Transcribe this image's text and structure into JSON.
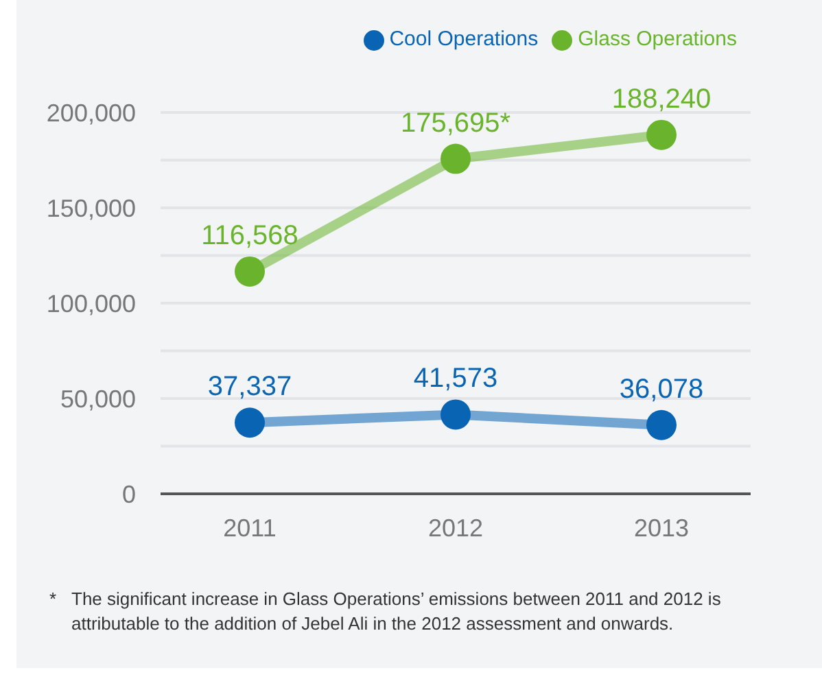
{
  "chart_data": {
    "type": "line",
    "categories": [
      "2011",
      "2012",
      "2013"
    ],
    "series": [
      {
        "name": "Cool Operations",
        "color": "#0a64b4",
        "values": [
          37337,
          41573,
          36078
        ],
        "value_labels": [
          "37,337",
          "41,573",
          "36,078"
        ]
      },
      {
        "name": "Glass Operations",
        "color": "#6ab42d",
        "values": [
          116568,
          175695,
          188240
        ],
        "value_labels": [
          "116,568",
          "175,695*",
          "188,240"
        ]
      }
    ],
    "ylim": [
      0,
      200000
    ],
    "yticks": [
      {
        "value": 0,
        "label": "0"
      },
      {
        "value": 25000,
        "label": null
      },
      {
        "value": 50000,
        "label": "50,000"
      },
      {
        "value": 75000,
        "label": null
      },
      {
        "value": 100000,
        "label": "100,000"
      },
      {
        "value": 125000,
        "label": null
      },
      {
        "value": 150000,
        "label": "150,000"
      },
      {
        "value": 175000,
        "label": null
      },
      {
        "value": 200000,
        "label": "200,000"
      }
    ],
    "grid": "y",
    "legend": "top right",
    "marker": "circle",
    "line_style": "solid",
    "annotations": [
      "* The significant increase in Glass Operations’ emissions between 2011 and 2012 is attributable to the addition of Jebel Ali in the 2012 assessment and onwards."
    ]
  }
}
